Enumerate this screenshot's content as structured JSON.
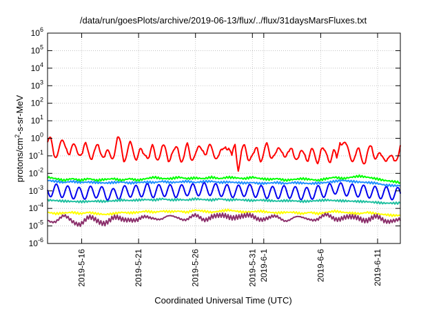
{
  "chart_data": {
    "type": "line",
    "title": "/data/run/goesPlots/archive/2019-06-13/flux/../flux/31daysMarsFluxes.txt",
    "xlabel": "Coordinated Universal Time (UTC)",
    "ylabel": "protons/cm²-s-sr-MeV",
    "y_scale": "log",
    "grid": true,
    "legend": "none",
    "xlim": [
      "2019-05-13",
      "2019-06-13"
    ],
    "ylim": [
      1e-06,
      1000000.0
    ],
    "x_tick_labels": [
      "2019-5-16",
      "2019-5-21",
      "2019-5-26",
      "2019-5-31",
      "2019-6-1",
      "2019-6-6",
      "2019-6-11"
    ],
    "x_tick_dates": [
      "2019-05-16",
      "2019-05-21",
      "2019-05-26",
      "2019-05-31",
      "2019-06-01",
      "2019-06-06",
      "2019-06-11"
    ],
    "y_tick_exponents": [
      -6,
      -5,
      -4,
      -3,
      -2,
      -1,
      0,
      1,
      2,
      3,
      4,
      5,
      6
    ],
    "series": [
      {
        "color": "#ff0000",
        "pattern": "daily-oscillation",
        "values": [
          0.6,
          0.5,
          0.15,
          0.2,
          0.3,
          0.4,
          0.5,
          0.15,
          0.2,
          0.3,
          0.25,
          0.1,
          0.3,
          0.25,
          0.1,
          0.12,
          0.35,
          0.25,
          0.08,
          0.1,
          0.12,
          0.2,
          0.6,
          0.4,
          0.1,
          0.15,
          0.3,
          0.2,
          0.12,
          0.15,
          0.08,
          0.2,
          0.12,
          0.2,
          0.08,
          0.15,
          0.25,
          0.15,
          0.08,
          0.2,
          0.12,
          0.2,
          0.1,
          0.1,
          0.25,
          0.1,
          0.15,
          0.12,
          0.2,
          0.4,
          0.15,
          0.2,
          0.2,
          0.15,
          0.08,
          0.12,
          0.6,
          0.4,
          0.05,
          0.4,
          0.03,
          0.15,
          0.2,
          0.1,
          0.15,
          0.08,
          0.2,
          0.1,
          0.15,
          0.25,
          0.12,
          0.2,
          0.1,
          0.15,
          0.3,
          0.12,
          0.08,
          0.25,
          0.15,
          0.06,
          0.1,
          0.2,
          0.08,
          0.12,
          0.1,
          0.08,
          0.2,
          0.1,
          0.15,
          0.08,
          0.12,
          0.05,
          1.2,
          0.6,
          0.2,
          0.15,
          0.1,
          0.08,
          0.15,
          0.1,
          0.06,
          0.12,
          0.3,
          0.15,
          0.1,
          0.05,
          0.1,
          0.12,
          0.05,
          0.04,
          0.15,
          0.4
        ]
      },
      {
        "color": "#00ff00",
        "pattern": "flat-noisy",
        "values": [
          0.006,
          0.005,
          0.004,
          0.005,
          0.004,
          0.005,
          0.004,
          0.0045,
          0.005,
          0.004,
          0.005,
          0.004,
          0.005,
          0.006,
          0.005,
          0.005,
          0.006,
          0.005,
          0.0055,
          0.005,
          0.006,
          0.005,
          0.006,
          0.0055,
          0.005,
          0.006,
          0.005,
          0.0045,
          0.005,
          0.004,
          0.0045,
          0.005,
          0.0045,
          0.004,
          0.005,
          0.006,
          0.005,
          0.006,
          0.007,
          0.006,
          0.005,
          0.004,
          0.0035,
          0.003
        ]
      },
      {
        "color": "#1f90ff",
        "pattern": "flat-noisy",
        "values": [
          0.004,
          0.0035,
          0.003,
          0.0035,
          0.003,
          0.0032,
          0.003,
          0.0028,
          0.003,
          0.0032,
          0.0028,
          0.003,
          0.0032,
          0.003,
          0.0035,
          0.003,
          0.0032,
          0.0035,
          0.003,
          0.0034,
          0.0035,
          0.003,
          0.0032,
          0.003,
          0.0028,
          0.003,
          0.0026,
          0.0028,
          0.003,
          0.0026,
          0.003,
          0.0028,
          0.0026,
          0.0028,
          0.003,
          0.0035,
          0.004,
          0.0035,
          0.0032,
          0.003,
          0.0028,
          0.0022,
          0.002,
          0.002
        ]
      },
      {
        "color": "#0000ee",
        "pattern": "daily-oscillation",
        "values": [
          0.001,
          0.0011,
          0.0009,
          0.0008,
          0.0007,
          0.0008,
          0.0009,
          0.0007,
          0.0006,
          0.0008,
          0.001,
          0.0009,
          0.0012,
          0.0009,
          0.0011,
          0.001,
          0.0009,
          0.0012,
          0.0011,
          0.0013,
          0.0012,
          0.0011,
          0.001,
          0.0009,
          0.0011,
          0.001,
          0.0009,
          0.0008,
          0.0008,
          0.0009,
          0.0008,
          0.0007,
          0.0007,
          0.0009,
          0.001,
          0.0015,
          0.0012,
          0.0011,
          0.001,
          0.0009,
          0.0008,
          0.0008,
          0.0007,
          0.0007
        ]
      },
      {
        "color": "#20c0a0",
        "pattern": "flat-noisy",
        "values": [
          0.0003,
          0.00028,
          0.00026,
          0.00025,
          0.00024,
          0.00025,
          0.00026,
          0.00025,
          0.00027,
          0.0003,
          0.00028,
          0.0003,
          0.00032,
          0.0003,
          0.00035,
          0.0003,
          0.00032,
          0.0003,
          0.00035,
          0.00032,
          0.0003,
          0.00035,
          0.0003,
          0.00032,
          0.0003,
          0.00028,
          0.0003,
          0.00028,
          0.00026,
          0.00028,
          0.00027,
          0.00025,
          0.00026,
          0.00028,
          0.0003,
          0.00028,
          0.00027,
          0.00026,
          0.00025,
          0.00024,
          0.00022,
          0.0002,
          0.0002,
          0.0002
        ]
      },
      {
        "color": "#ffff00",
        "pattern": "flat-noisy",
        "values": [
          6e-05,
          5e-05,
          5.5e-05,
          6e-05,
          5e-05,
          6e-05,
          5e-05,
          4.5e-05,
          5e-05,
          6e-05,
          5.5e-05,
          6e-05,
          7e-05,
          6e-05,
          7e-05,
          6.5e-05,
          7e-05,
          6e-05,
          8e-05,
          7e-05,
          6e-05,
          7e-05,
          8e-05,
          7e-05,
          6e-05,
          6.5e-05,
          7e-05,
          6e-05,
          5.5e-05,
          6e-05,
          6e-05,
          5e-05,
          6e-05,
          5e-05,
          6e-05,
          7e-05,
          6e-05,
          5.5e-05,
          5e-05,
          6e-05,
          5e-05,
          4.5e-05,
          4e-05,
          4e-05
        ]
      },
      {
        "color": "#8b2f6b",
        "pattern": "noisy",
        "values": [
          2.5e-05,
          2e-05,
          3e-05,
          2e-05,
          1.5e-05,
          2.5e-05,
          2e-05,
          1.8e-05,
          2.5e-05,
          2.2e-05,
          3e-05,
          2e-05,
          2.8e-05,
          3.5e-05,
          2.5e-05,
          3e-05,
          3.5e-05,
          2.5e-05,
          3.2e-05,
          2.5e-05,
          4e-05,
          3e-05,
          3.5e-05,
          4e-05,
          3e-05,
          3.5e-05,
          3e-05,
          2.5e-05,
          3e-05,
          2.5e-05,
          2.8e-05,
          2.5e-05,
          3e-05,
          2.5e-05,
          3.5e-05,
          3e-05,
          3.2e-05,
          2.5e-05,
          3e-05,
          2.5e-05,
          2.8e-05,
          2e-05,
          2.5e-05,
          2e-05
        ]
      }
    ]
  }
}
